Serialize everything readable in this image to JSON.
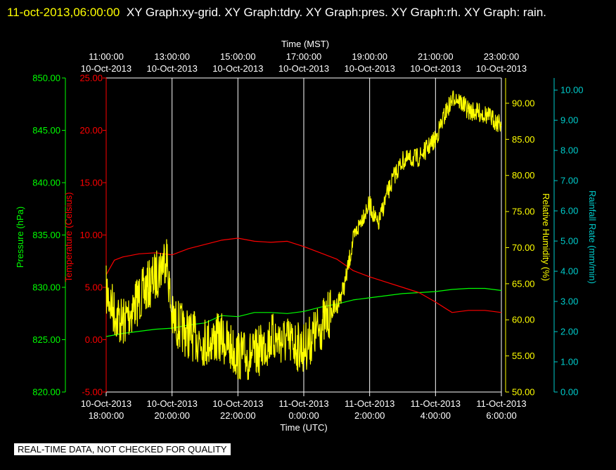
{
  "header": {
    "timestamp": "11-oct-2013,06:00:00",
    "graphs": "XY Graph:xy-grid.  XY Graph:tdry.  XY Graph:pres.  XY Graph:rh.  XY Graph: rain."
  },
  "footer": {
    "notice": "REAL-TIME DATA, NOT CHECKED FOR QUALITY"
  },
  "colors": {
    "pressure": "#00ff00",
    "temperature": "#ff0000",
    "humidity": "#ffff00",
    "rain": "#00cccc",
    "grid": "#ffffff",
    "background": "#000000"
  },
  "chart_data": {
    "type": "line",
    "grid": true,
    "top_axis": {
      "label": "Time (MST)",
      "ticks": [
        {
          "time": "11:00:00",
          "date": "10-Oct-2013"
        },
        {
          "time": "13:00:00",
          "date": "10-Oct-2013"
        },
        {
          "time": "15:00:00",
          "date": "10-Oct-2013"
        },
        {
          "time": "17:00:00",
          "date": "10-Oct-2013"
        },
        {
          "time": "19:00:00",
          "date": "10-Oct-2013"
        },
        {
          "time": "21:00:00",
          "date": "10-Oct-2013"
        },
        {
          "time": "23:00:00",
          "date": "10-Oct-2013"
        }
      ]
    },
    "bottom_axis": {
      "label": "Time (UTC)",
      "range": [
        "2013-10-10 18:00",
        "2013-10-11 06:00"
      ],
      "ticks": [
        {
          "date": "10-Oct-2013",
          "time": "18:00:00"
        },
        {
          "date": "10-Oct-2013",
          "time": "20:00:00"
        },
        {
          "date": "10-Oct-2013",
          "time": "22:00:00"
        },
        {
          "date": "11-Oct-2013",
          "time": "0:00:00"
        },
        {
          "date": "11-Oct-2013",
          "time": "2:00:00"
        },
        {
          "date": "11-Oct-2013",
          "time": "4:00:00"
        },
        {
          "date": "11-Oct-2013",
          "time": "6:00:00"
        }
      ]
    },
    "y_axes": {
      "pressure": {
        "label": "Pressure (hPa)",
        "range": [
          820,
          850
        ],
        "ticks": [
          "820.00",
          "825.00",
          "830.00",
          "835.00",
          "840.00",
          "845.00",
          "850.00"
        ]
      },
      "temperature": {
        "label": "Temperature (Celsius)",
        "range": [
          -5,
          25
        ],
        "ticks": [
          "-5.00",
          "0.00",
          "5.00",
          "10.00",
          "15.00",
          "20.00",
          "25.00"
        ]
      },
      "humidity": {
        "label": "Relative Humidity (%)",
        "range": [
          50,
          93.5
        ],
        "ticks": [
          "50.00",
          "55.00",
          "60.00",
          "65.00",
          "70.00",
          "75.00",
          "80.00",
          "85.00",
          "90.00"
        ]
      },
      "rain": {
        "label": "Rainfall Rate (mm/min)",
        "range": [
          0,
          10.4
        ],
        "ticks": [
          "0.00",
          "1.00",
          "2.00",
          "3.00",
          "4.00",
          "5.00",
          "6.00",
          "7.00",
          "8.00",
          "9.00",
          "10.00"
        ]
      }
    },
    "series": [
      {
        "key": "pressure",
        "axis": "pressure",
        "points": [
          [
            "2013-10-10 18:00",
            825.3
          ],
          [
            "2013-10-10 18:30",
            825.6
          ],
          [
            "2013-10-10 19:00",
            825.8
          ],
          [
            "2013-10-10 19:30",
            826.0
          ],
          [
            "2013-10-10 20:00",
            826.1
          ],
          [
            "2013-10-10 20:30",
            826.4
          ],
          [
            "2013-10-10 21:00",
            826.6
          ],
          [
            "2013-10-10 21:30",
            827.3
          ],
          [
            "2013-10-10 22:00",
            827.2
          ],
          [
            "2013-10-10 22:30",
            827.6
          ],
          [
            "2013-10-10 23:00",
            827.6
          ],
          [
            "2013-10-10 23:30",
            827.5
          ],
          [
            "2013-10-11 00:00",
            827.7
          ],
          [
            "2013-10-11 00:30",
            828.1
          ],
          [
            "2013-10-11 01:00",
            828.4
          ],
          [
            "2013-10-11 01:30",
            828.8
          ],
          [
            "2013-10-11 02:00",
            829.0
          ],
          [
            "2013-10-11 02:30",
            829.2
          ],
          [
            "2013-10-11 03:00",
            829.4
          ],
          [
            "2013-10-11 03:30",
            829.5
          ],
          [
            "2013-10-11 04:00",
            829.6
          ],
          [
            "2013-10-11 04:30",
            829.8
          ],
          [
            "2013-10-11 05:00",
            829.9
          ],
          [
            "2013-10-11 05:30",
            829.9
          ],
          [
            "2013-10-11 06:00",
            829.7
          ]
        ]
      },
      {
        "key": "temperature",
        "axis": "temperature",
        "points": [
          [
            "2013-10-10 18:00",
            6.2
          ],
          [
            "2013-10-10 18:15",
            7.6
          ],
          [
            "2013-10-10 18:30",
            7.9
          ],
          [
            "2013-10-10 19:00",
            8.2
          ],
          [
            "2013-10-10 19:30",
            8.3
          ],
          [
            "2013-10-10 20:00",
            8.1
          ],
          [
            "2013-10-10 20:30",
            8.7
          ],
          [
            "2013-10-10 21:00",
            9.1
          ],
          [
            "2013-10-10 21:30",
            9.5
          ],
          [
            "2013-10-10 22:00",
            9.7
          ],
          [
            "2013-10-10 22:30",
            9.4
          ],
          [
            "2013-10-10 23:00",
            9.3
          ],
          [
            "2013-10-10 23:30",
            9.4
          ],
          [
            "2013-10-11 00:00",
            8.9
          ],
          [
            "2013-10-11 00:30",
            8.3
          ],
          [
            "2013-10-11 01:00",
            7.7
          ],
          [
            "2013-10-11 01:30",
            6.6
          ],
          [
            "2013-10-11 02:00",
            6.0
          ],
          [
            "2013-10-11 02:30",
            5.5
          ],
          [
            "2013-10-11 03:00",
            5.0
          ],
          [
            "2013-10-11 03:30",
            4.5
          ],
          [
            "2013-10-11 04:00",
            3.6
          ],
          [
            "2013-10-11 04:30",
            2.6
          ],
          [
            "2013-10-11 05:00",
            2.8
          ],
          [
            "2013-10-11 05:30",
            2.8
          ],
          [
            "2013-10-11 06:00",
            2.6
          ]
        ]
      },
      {
        "key": "humidity",
        "axis": "humidity",
        "noise": 2.2,
        "points": [
          [
            "2013-10-10 18:00",
            64.0
          ],
          [
            "2013-10-10 18:15",
            61.0
          ],
          [
            "2013-10-10 18:30",
            59.5
          ],
          [
            "2013-10-10 19:00",
            63.0
          ],
          [
            "2013-10-10 19:30",
            66.0
          ],
          [
            "2013-10-10 19:50",
            69.0
          ],
          [
            "2013-10-10 20:00",
            60.0
          ],
          [
            "2013-10-10 20:30",
            58.0
          ],
          [
            "2013-10-10 21:00",
            57.0
          ],
          [
            "2013-10-10 21:30",
            57.5
          ],
          [
            "2013-10-10 22:00",
            55.0
          ],
          [
            "2013-10-10 22:30",
            55.0
          ],
          [
            "2013-10-10 23:00",
            57.5
          ],
          [
            "2013-10-10 23:30",
            57.0
          ],
          [
            "2013-10-11 00:00",
            56.0
          ],
          [
            "2013-10-11 00:30",
            59.0
          ],
          [
            "2013-10-11 01:00",
            62.0
          ],
          [
            "2013-10-11 01:15",
            65.0
          ],
          [
            "2013-10-11 01:30",
            71.0
          ],
          [
            "2013-10-11 01:45",
            74.0
          ],
          [
            "2013-10-11 02:00",
            76.0
          ],
          [
            "2013-10-11 02:15",
            73.0
          ],
          [
            "2013-10-11 02:30",
            77.0
          ],
          [
            "2013-10-11 02:45",
            80.0
          ],
          [
            "2013-10-11 03:00",
            82.0
          ],
          [
            "2013-10-11 03:30",
            82.5
          ],
          [
            "2013-10-11 04:00",
            85.0
          ],
          [
            "2013-10-11 04:20",
            89.0
          ],
          [
            "2013-10-11 04:35",
            91.0
          ],
          [
            "2013-10-11 05:00",
            89.0
          ],
          [
            "2013-10-11 05:30",
            88.5
          ],
          [
            "2013-10-11 06:00",
            87.0
          ]
        ]
      }
    ]
  }
}
